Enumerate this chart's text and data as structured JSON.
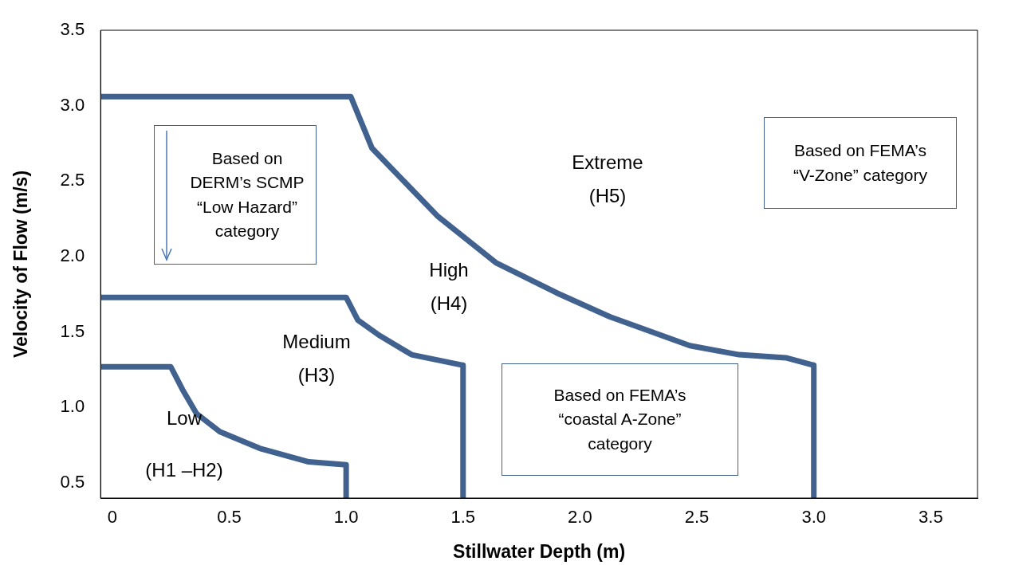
{
  "chart_data": {
    "type": "line",
    "xlabel": "Stillwater Depth (m)",
    "ylabel": "Velocity of Flow (m/s)",
    "xlim": [
      -0.05,
      3.7
    ],
    "xticks": [
      0,
      0.5,
      {
        "value": 1,
        "label": "1.0"
      },
      1.5,
      {
        "value": 2,
        "label": "2.0"
      },
      2.5,
      {
        "value": 3,
        "label": "3.0"
      },
      3.5
    ],
    "ylim": [
      0.4,
      3.5
    ],
    "yticks": [
      0.5,
      {
        "value": 1,
        "label": "1.0"
      },
      1.5,
      {
        "value": 2,
        "label": "2.0"
      },
      2.5,
      {
        "value": 3,
        "label": "3.0"
      },
      3.5
    ],
    "grid": false,
    "legend": false,
    "marker": "none",
    "line_style": "solid",
    "series": [
      {
        "color": "#41618f",
        "x": [
          -0.05,
          0.25,
          0.3,
          0.36,
          0.46,
          0.63,
          0.84,
          1.0,
          1.0
        ],
        "values": [
          1.27,
          1.27,
          1.12,
          0.96,
          0.84,
          0.73,
          0.64,
          0.62,
          0.4
        ]
      },
      {
        "color": "#41618f",
        "x": [
          -0.05,
          1.0,
          1.05,
          1.14,
          1.28,
          1.5,
          1.5
        ],
        "values": [
          1.73,
          1.73,
          1.58,
          1.48,
          1.35,
          1.28,
          0.4
        ]
      },
      {
        "color": "#41618f",
        "x": [
          -0.05,
          1.02,
          1.11,
          1.39,
          1.64,
          1.9,
          2.13,
          2.47,
          2.68,
          2.88,
          3.0,
          3.0
        ],
        "values": [
          3.06,
          3.06,
          2.72,
          2.27,
          1.96,
          1.76,
          1.6,
          1.41,
          1.35,
          1.33,
          1.28,
          0.4
        ]
      }
    ],
    "annotations": [
      "Low",
      "(H1 –H2)",
      "Medium\n(H3)",
      "High\n(H4)",
      "Extreme\n(H5)",
      "Based on\nDERM’s SCMP\n“Low Hazard”\ncategory",
      "Based on FEMA’s\n“V-Zone” category",
      "Based on FEMA’s\n“coastal A-Zone”\ncategory"
    ]
  }
}
